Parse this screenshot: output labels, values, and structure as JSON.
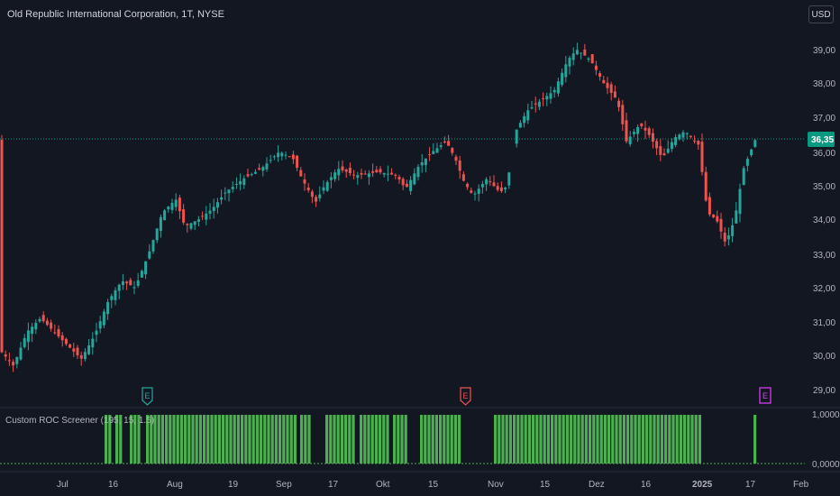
{
  "header": {
    "symbol_title": "Old Republic International Corporation, 1T, NYSE",
    "currency_button": "USD"
  },
  "price_axis": {
    "labels": [
      "39,00",
      "38,00",
      "37,00",
      "36,00",
      "35,00",
      "34,00",
      "33,00",
      "32,00",
      "31,00",
      "30,00",
      "29,00"
    ],
    "current_price": "36,35",
    "current_price_color": "#089981"
  },
  "indicator": {
    "label": "Custom ROC Screener (195, 15, 1.5)",
    "axis_labels": [
      "1,0000",
      "0,0000"
    ],
    "bar_color": "#4caf50"
  },
  "time_axis": {
    "labels": [
      "Jul",
      "16",
      "Aug",
      "19",
      "Sep",
      "17",
      "Okt",
      "15",
      "Nov",
      "15",
      "Dez",
      "16",
      "2025",
      "17",
      "Feb"
    ]
  },
  "event_markers": [
    "E",
    "E",
    "E"
  ],
  "colors": {
    "background": "#131722",
    "up_candle": "#26a69a",
    "down_candle": "#ef5350",
    "grid": "#1e222d"
  }
}
